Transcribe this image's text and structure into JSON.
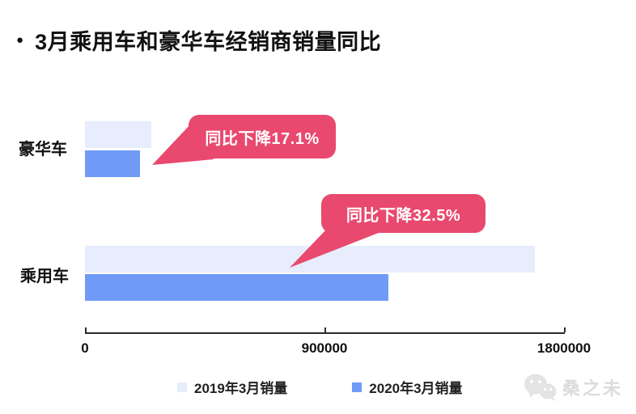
{
  "title": {
    "bullet": "●",
    "text": "3月乘用车和豪华车经销商销量同比"
  },
  "chart_data": {
    "type": "bar",
    "orientation": "horizontal",
    "title": "3月乘用车和豪华车经销商销量同比",
    "categories": [
      "豪华车",
      "乘用车"
    ],
    "series": [
      {
        "name": "2019年3月销量",
        "color": "#e7edfc",
        "values": [
          250000,
          1690000
        ]
      },
      {
        "name": "2020年3月销量",
        "color": "#6f9bf7",
        "values": [
          207250,
          1140750
        ]
      }
    ],
    "annotations": [
      {
        "category": "豪华车",
        "label": "同比下降17.1%"
      },
      {
        "category": "乘用车",
        "label": "同比下降32.5%"
      }
    ],
    "xlabel": "",
    "ylabel": "",
    "xlim": [
      0,
      1800000
    ],
    "x_ticks": [
      0,
      900000,
      1800000
    ],
    "x_tick_labels": [
      "0",
      "900000",
      "1800000"
    ],
    "grid": false,
    "legend_position": "bottom"
  },
  "colors": {
    "series_2019": "#e7edfc",
    "series_2020": "#6f9bf7",
    "callout": "#e9496e",
    "axis": "#2b2b2b",
    "watermark": "#dcdcdc"
  },
  "watermark": {
    "text": "桑之未",
    "icon": "wechat-logo"
  }
}
